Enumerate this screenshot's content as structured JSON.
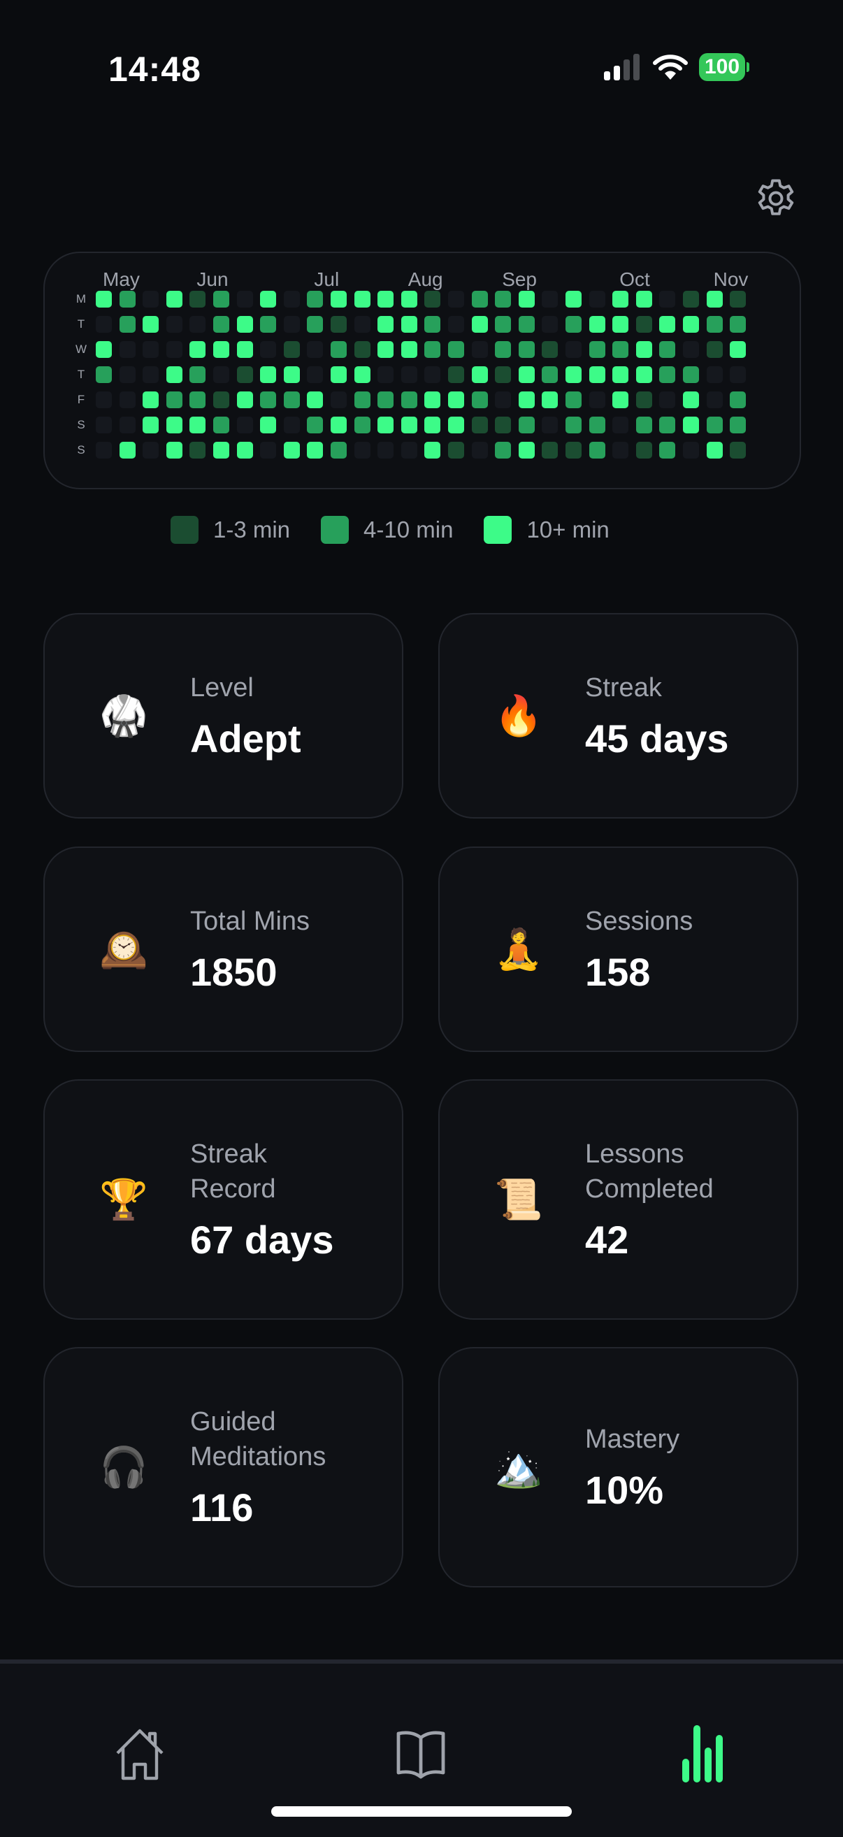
{
  "status_bar": {
    "time": "14:48",
    "battery": "100",
    "signal_icon": "cellular-signal-icon",
    "wifi_icon": "wifi-icon"
  },
  "header": {
    "settings_icon": "gear-icon"
  },
  "heatmap": {
    "months": [
      {
        "label": "May",
        "col": 0
      },
      {
        "label": "Jun",
        "col": 4
      },
      {
        "label": "Jul",
        "col": 9
      },
      {
        "label": "Aug",
        "col": 13
      },
      {
        "label": "Sep",
        "col": 17
      },
      {
        "label": "Oct",
        "col": 22
      },
      {
        "label": "Nov",
        "col": 26
      }
    ],
    "days": [
      "M",
      "T",
      "W",
      "T",
      "F",
      "S",
      "S"
    ],
    "level_colors": [
      "#15181e",
      "#1b4d31",
      "#27a05b",
      "#3dfb88"
    ],
    "levels": [
      [
        3,
        2,
        0,
        3,
        1,
        2,
        0,
        3,
        0,
        2,
        3,
        3,
        3,
        3,
        1,
        0,
        2,
        2,
        3,
        0,
        3,
        0,
        3,
        3,
        0,
        1,
        3,
        1
      ],
      [
        0,
        2,
        3,
        0,
        0,
        2,
        3,
        2,
        0,
        2,
        1,
        0,
        3,
        3,
        2,
        0,
        3,
        2,
        2,
        0,
        2,
        3,
        3,
        1,
        3,
        3,
        2,
        2
      ],
      [
        3,
        0,
        0,
        0,
        3,
        3,
        3,
        0,
        1,
        0,
        2,
        1,
        3,
        3,
        2,
        2,
        0,
        2,
        2,
        1,
        0,
        2,
        2,
        3,
        2,
        0,
        1,
        3
      ],
      [
        2,
        0,
        0,
        3,
        2,
        0,
        1,
        3,
        3,
        0,
        3,
        3,
        0,
        0,
        0,
        1,
        3,
        1,
        3,
        2,
        3,
        3,
        3,
        3,
        2,
        2,
        0,
        0
      ],
      [
        0,
        0,
        3,
        2,
        2,
        1,
        3,
        2,
        2,
        3,
        0,
        2,
        2,
        2,
        3,
        3,
        2,
        0,
        3,
        3,
        2,
        0,
        3,
        1,
        0,
        3,
        0,
        2
      ],
      [
        0,
        0,
        3,
        3,
        3,
        2,
        0,
        3,
        0,
        2,
        3,
        2,
        3,
        3,
        3,
        3,
        1,
        1,
        2,
        0,
        2,
        2,
        0,
        2,
        2,
        3,
        2,
        2
      ],
      [
        0,
        3,
        0,
        3,
        1,
        3,
        3,
        0,
        3,
        3,
        2,
        0,
        0,
        0,
        3,
        1,
        0,
        2,
        3,
        1,
        1,
        2,
        0,
        1,
        2,
        0,
        3,
        1
      ]
    ],
    "legend": [
      {
        "label": "1-3 min",
        "level": 1
      },
      {
        "label": "4-10 min",
        "level": 2
      },
      {
        "label": "10+ min",
        "level": 3
      }
    ]
  },
  "stats": [
    {
      "label": "Level",
      "value": "Adept",
      "icon": "🥋",
      "icon_name": "martial-arts-uniform-icon"
    },
    {
      "label": "Streak",
      "value": "45 days",
      "icon": "🔥",
      "icon_name": "fire-icon"
    },
    {
      "label": "Total Mins",
      "value": "1850",
      "icon": "🕰️",
      "icon_name": "mantelpiece-clock-icon"
    },
    {
      "label": "Sessions",
      "value": "158",
      "icon": "🧘",
      "icon_name": "meditation-icon"
    },
    {
      "label": "Streak Record",
      "value": "67 days",
      "icon": "🏆",
      "icon_name": "trophy-icon"
    },
    {
      "label": "Lessons Completed",
      "value": "42",
      "icon": "📜",
      "icon_name": "scroll-icon"
    },
    {
      "label": "Guided Meditations",
      "value": "116",
      "icon": "🎧",
      "icon_name": "headphones-icon"
    },
    {
      "label": "Mastery",
      "value": "10%",
      "icon": "🏔️",
      "icon_name": "mountain-icon"
    }
  ],
  "nav": {
    "active": "stats",
    "active_color": "#3dfb88",
    "inactive_color": "#9fa3ab",
    "items": [
      "home",
      "library",
      "stats"
    ]
  }
}
